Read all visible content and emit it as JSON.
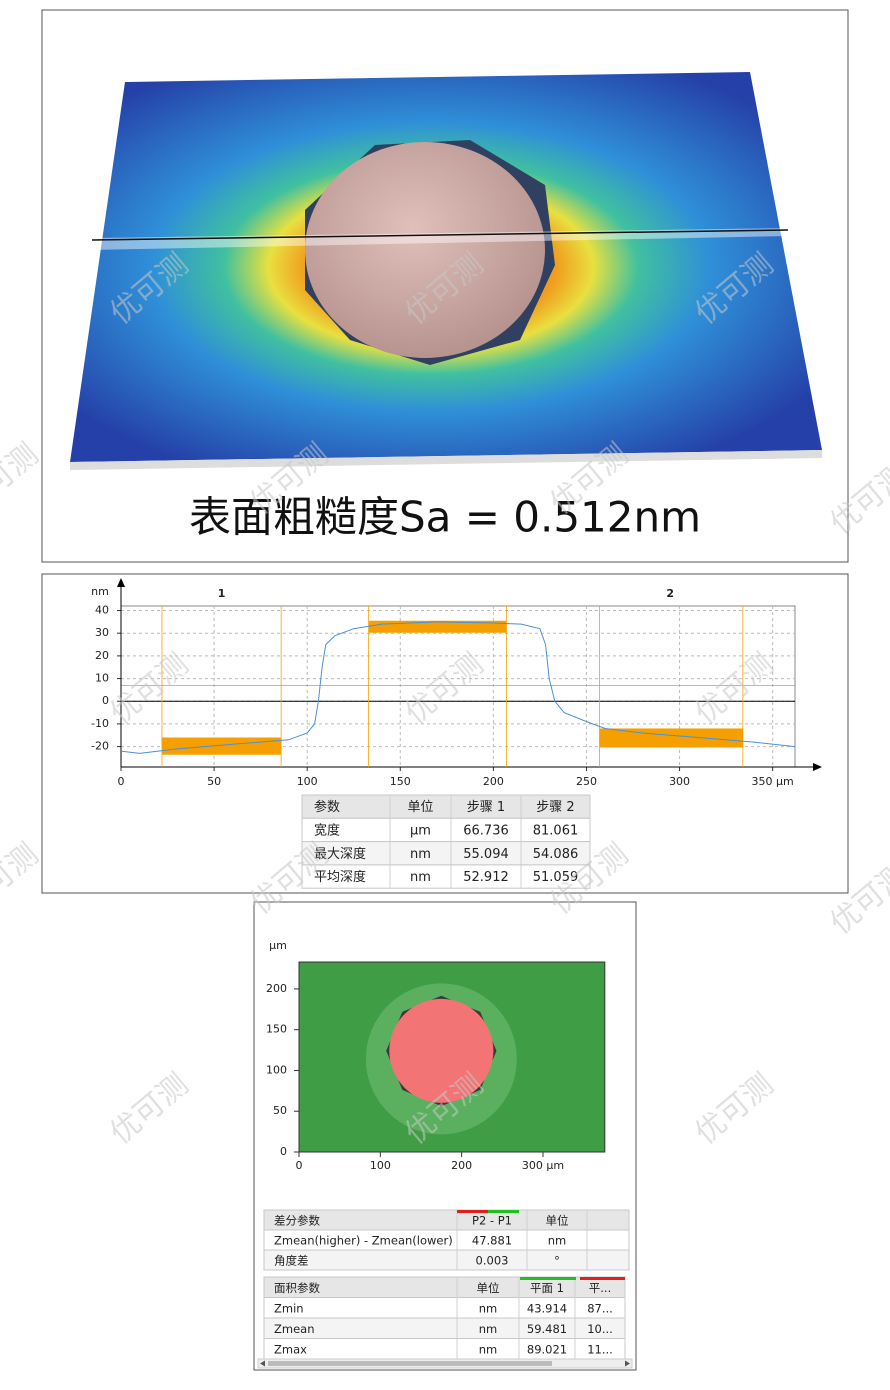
{
  "surface": {
    "caption": "表面粗糙度Sa = 0.512nm"
  },
  "watermark": "优可测",
  "chart_data": [
    {
      "type": "line",
      "ylabel": "nm",
      "color": "#4a90d9",
      "x": [
        0,
        10,
        30,
        60,
        90,
        100,
        104,
        106,
        108,
        110,
        115,
        125,
        140,
        170,
        200,
        215,
        225,
        228,
        230,
        233,
        238,
        250,
        260,
        280,
        310,
        340,
        362
      ],
      "values": [
        -22,
        -23,
        -21,
        -19,
        -17,
        -14,
        -10,
        0,
        15,
        25,
        29,
        32,
        34,
        35,
        34.5,
        34,
        32,
        25,
        10,
        0,
        -5,
        -9,
        -12,
        -14,
        -16,
        -18,
        -20
      ],
      "xlim": [
        0,
        362
      ],
      "ylim": [
        -29,
        42
      ],
      "xticks": [
        0,
        50,
        100,
        150,
        200,
        250,
        300,
        {
          "value": 350,
          "label": "350 µm"
        }
      ],
      "yticks": [
        -20,
        -10,
        0,
        10,
        20,
        30,
        40
      ],
      "grid": true,
      "zone_color": "#f5a000",
      "reference_line": 7,
      "zones": [
        {
          "x": [
            22,
            86
          ],
          "y": [
            -23.6,
            -16
          ]
        },
        {
          "x": [
            133,
            207
          ],
          "y": [
            30.2,
            35.5
          ]
        },
        {
          "x": [
            257,
            334
          ],
          "y": [
            -20.4,
            -12
          ]
        }
      ],
      "step_labels": [
        {
          "label": "1",
          "x": 54
        },
        {
          "label": "2",
          "x": 295
        }
      ]
    },
    {
      "type": "map",
      "ylabel": "µm",
      "xlim": [
        0,
        376
      ],
      "ylim": [
        0,
        233
      ],
      "xticks": [
        0,
        100,
        200,
        {
          "value": 300,
          "label": "300 µm"
        }
      ],
      "yticks": [
        0,
        50,
        100,
        150,
        200
      ],
      "colors": {
        "background": "#3f9e45",
        "circle": "#f27474"
      },
      "circle": {
        "cx": 175,
        "cy": 124,
        "r": 64
      }
    }
  ],
  "step_table": {
    "columns": [
      "参数",
      "单位",
      "步骤 1",
      "步骤 2"
    ],
    "rows": [
      [
        "宽度",
        "µm",
        66.736,
        81.061
      ],
      [
        "最大深度",
        "nm",
        55.094,
        54.086
      ],
      [
        "平均深度",
        "nm",
        52.912,
        51.059
      ]
    ]
  },
  "diff_table": {
    "columns": [
      "差分参数",
      "P2 - P1",
      "单位"
    ],
    "rows": [
      [
        "Zmean(higher) - Zmean(lower)",
        47.881,
        "nm"
      ],
      [
        "角度差",
        0.003,
        "°"
      ]
    ]
  },
  "area_table": {
    "columns": [
      "面积参数",
      "单位",
      "平面 1",
      "平..."
    ],
    "rows": [
      [
        "Zmin",
        "nm",
        43.914,
        "87..."
      ],
      [
        "Zmean",
        "nm",
        59.481,
        "10..."
      ],
      [
        "Zmax",
        "nm",
        89.021,
        "11..."
      ]
    ]
  }
}
